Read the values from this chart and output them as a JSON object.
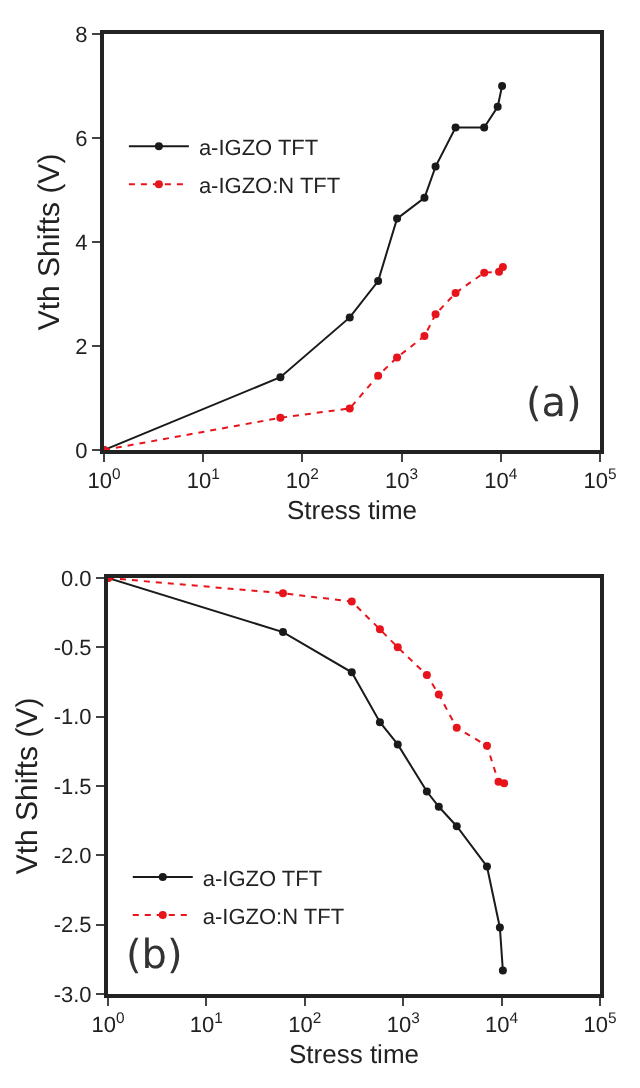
{
  "chart_data": [
    {
      "type": "line",
      "xlabel": "Stress time",
      "ylabel": "Vth Shifts (V)",
      "log": "x",
      "xlim": [
        1,
        100000
      ],
      "ylim": [
        0,
        8
      ],
      "xticks": [
        {
          "value": 1,
          "label": "10$^{0}$"
        },
        {
          "value": 10,
          "label": "10$^{1}$"
        },
        {
          "value": 100,
          "label": "10$^{2}$"
        },
        {
          "value": 1000,
          "label": "10$^{3}$"
        },
        {
          "value": 10000,
          "label": "10$^{4}$"
        },
        {
          "value": 100000,
          "label": "10$^{5}$"
        }
      ],
      "yticks": [
        0,
        2,
        4,
        6,
        8
      ],
      "grid": false,
      "legend": "top left",
      "marker": "circle",
      "annotations": [
        "(a)"
      ],
      "series": [
        {
          "name": "a-IGZO TFT",
          "color": "#1a1a1a",
          "line_style": "solid",
          "x": [
            1,
            60,
            300,
            580,
            900,
            1700,
            2200,
            3500,
            6800,
            9300,
            10300
          ],
          "values": [
            0,
            1.4,
            2.55,
            3.25,
            4.45,
            4.85,
            5.45,
            6.2,
            6.2,
            6.6,
            7.0
          ]
        },
        {
          "name": "a-IGZO:N TFT",
          "color": "#e8141b",
          "line_style": "dotted",
          "x": [
            1,
            60,
            300,
            580,
            900,
            1700,
            2200,
            3500,
            6800,
            9600,
            10500
          ],
          "values": [
            0,
            0.62,
            0.8,
            1.43,
            1.78,
            2.19,
            2.61,
            3.02,
            3.41,
            3.43,
            3.52
          ]
        }
      ]
    },
    {
      "type": "line",
      "xlabel": "Stress time",
      "ylabel": "Vth Shifts (V)",
      "log": "x",
      "xlim": [
        1,
        100000
      ],
      "ylim": [
        -3,
        0
      ],
      "xticks": [
        {
          "value": 1,
          "label": "10$^{0}$"
        },
        {
          "value": 10,
          "label": "10$^{1}$"
        },
        {
          "value": 100,
          "label": "10$^{2}$"
        },
        {
          "value": 1000,
          "label": "10$^{3}$"
        },
        {
          "value": 10000,
          "label": "10$^{4}$"
        },
        {
          "value": 100000,
          "label": "10$^{5}$"
        }
      ],
      "yticks": [
        {
          "value": 0,
          "label": "0.0"
        },
        {
          "value": -0.5,
          "label": "-0.5"
        },
        {
          "value": -1,
          "label": "-1.0"
        },
        {
          "value": -1.5,
          "label": "-1.5"
        },
        {
          "value": -2,
          "label": "-2.0"
        },
        {
          "value": -2.5,
          "label": "-2.5"
        },
        {
          "value": -3,
          "label": "-3.0"
        }
      ],
      "grid": false,
      "legend": "bottom left",
      "marker": "circle",
      "annotations": [
        "(b)"
      ],
      "series": [
        {
          "name": "a-IGZO TFT",
          "color": "#1a1a1a",
          "line_style": "solid",
          "x": [
            1,
            60,
            300,
            580,
            880,
            1740,
            2300,
            3500,
            7100,
            9600,
            10300
          ],
          "values": [
            0,
            -0.39,
            -0.68,
            -1.04,
            -1.2,
            -1.54,
            -1.65,
            -1.79,
            -2.08,
            -2.52,
            -2.83
          ]
        },
        {
          "name": "a-IGZO:N TFT",
          "color": "#e8141b",
          "line_style": "dotted",
          "x": [
            1,
            60,
            300,
            580,
            880,
            1740,
            2300,
            3500,
            7100,
            9300,
            10600
          ],
          "values": [
            0,
            -0.11,
            -0.17,
            -0.37,
            -0.5,
            -0.7,
            -0.84,
            -1.08,
            -1.21,
            -1.47,
            -1.48
          ]
        }
      ]
    }
  ]
}
